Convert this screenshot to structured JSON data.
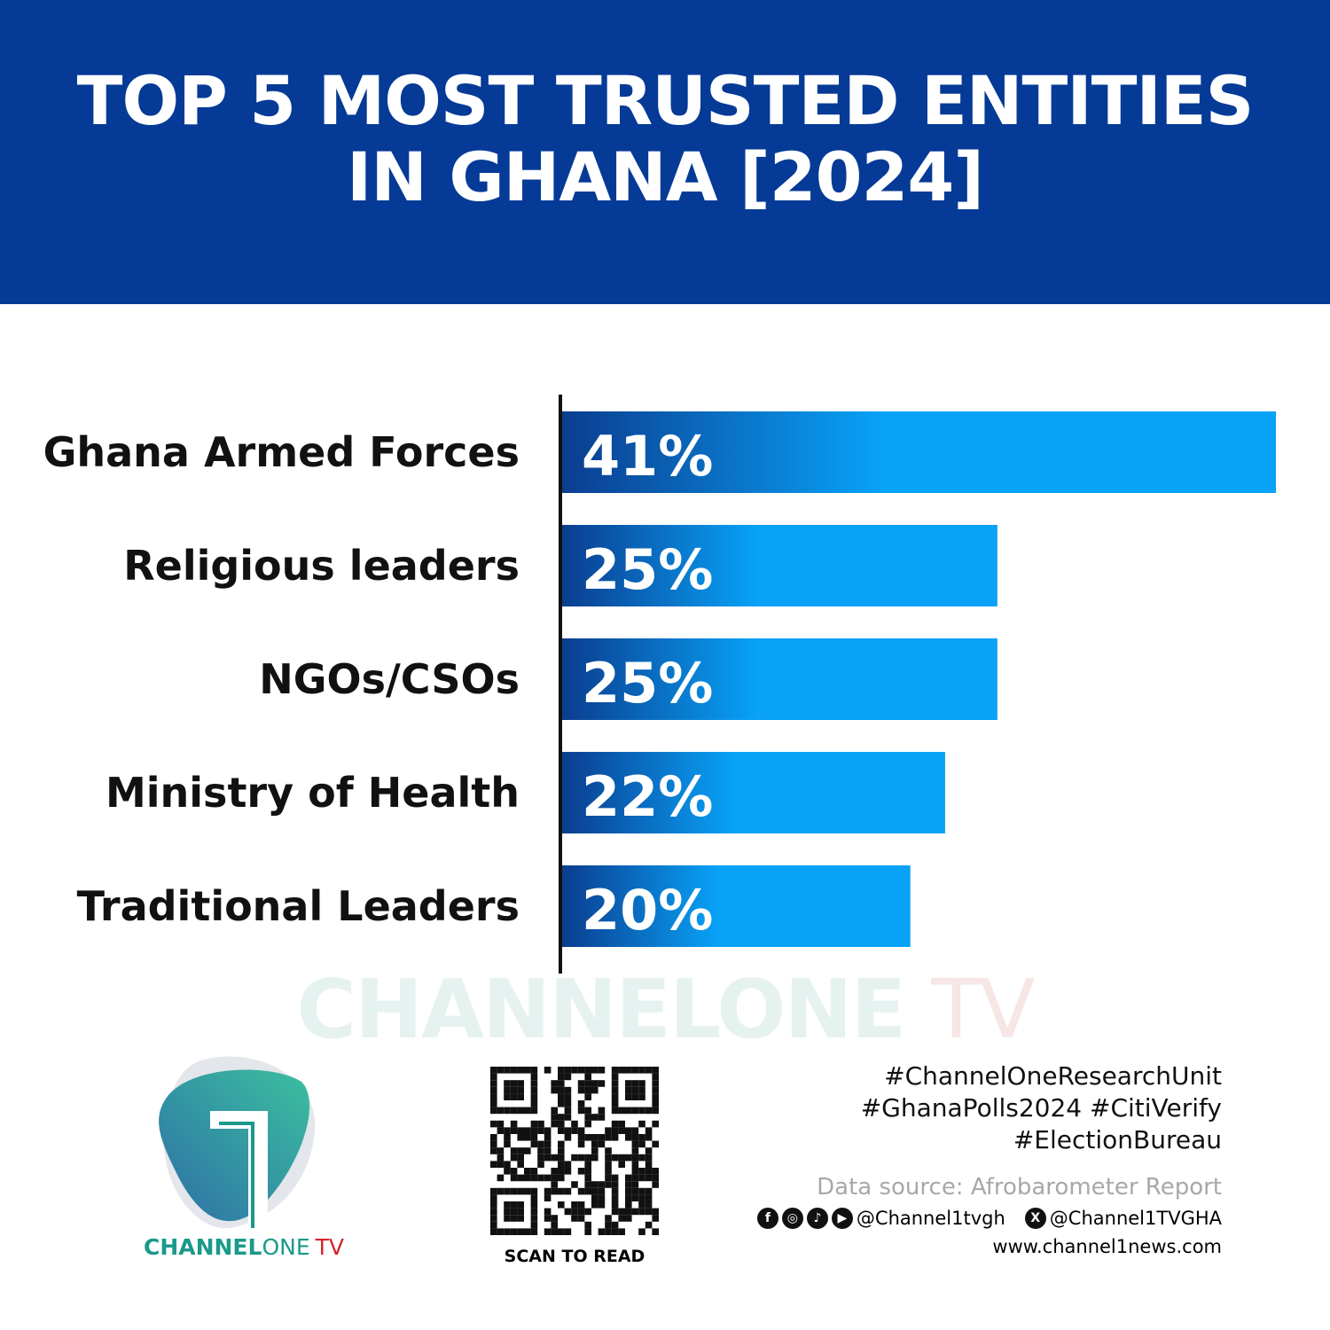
{
  "header": {
    "title_line1": "TOP 5 MOST TRUSTED ENTITIES",
    "title_line2": "IN GHANA [2024]",
    "bg": "#053a96"
  },
  "chart_data": {
    "type": "bar",
    "orientation": "horizontal",
    "categories": [
      "Ghana Armed Forces",
      "Religious leaders",
      "NGOs/CSOs",
      "Ministry of Health",
      "Traditional Leaders"
    ],
    "values": [
      41,
      25,
      25,
      22,
      20
    ],
    "labels": [
      "41%",
      "25%",
      "25%",
      "22%",
      "20%"
    ],
    "title": "TOP 5 MOST TRUSTED ENTITIES IN GHANA [2024]",
    "unit": "%",
    "grid": false,
    "colors": {
      "bar_start": "#0b3d8f",
      "bar_end": "#08a2f7"
    }
  },
  "watermark": {
    "main": "CHANNELONE",
    "tv": "TV"
  },
  "logo": {
    "text_a": "CHANNEL",
    "text_b": "ONE",
    "text_c": "TV",
    "teal": "#1a9a8a",
    "red": "#d0262b"
  },
  "qr": {
    "caption": "SCAN TO READ"
  },
  "footer": {
    "tags": [
      "#ChannelOneResearchUnit",
      "#GhanaPolls2024 #CitiVerify",
      "#ElectionBureau"
    ],
    "source": "Data source: Afrobarometer Report",
    "handle_main": "@Channel1tvgh",
    "handle_x": "@Channel1TVGHA",
    "website": "www.channel1news.com",
    "icons": [
      "facebook-icon",
      "instagram-icon",
      "tiktok-icon",
      "youtube-icon",
      "x-icon"
    ]
  }
}
